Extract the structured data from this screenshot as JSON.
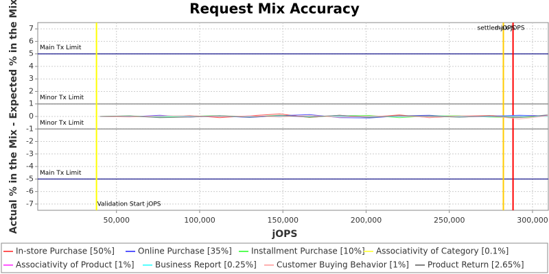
{
  "chart_data": {
    "type": "line",
    "title": "Request Mix Accuracy",
    "x_label": "jOPS",
    "y_label": "Actual % in the Mix - Expected % in the Mix",
    "xlim": [
      2700,
      309500
    ],
    "ylim": [
      -7.5,
      7.5
    ],
    "xticks": [
      {
        "value": 50000,
        "label": "50,000"
      },
      {
        "value": 100000,
        "label": "100,000"
      },
      {
        "value": 150000,
        "label": "150,000"
      },
      {
        "value": 200000,
        "label": "200,000"
      },
      {
        "value": 250000,
        "label": "250,000"
      },
      {
        "value": 300000,
        "label": "300,000"
      }
    ],
    "yticks": [
      -7,
      -6,
      -5,
      -4,
      -3,
      -2,
      -1,
      0,
      1,
      2,
      3,
      4,
      5,
      6,
      7
    ],
    "grid": true,
    "legend": "bottom",
    "hlines": [
      {
        "value": 5,
        "label": "Main Tx Limit",
        "color": "#000080"
      },
      {
        "value": 1,
        "label": "Minor Tx Limit",
        "color": "#808080"
      },
      {
        "value": -1,
        "label": "Minor Tx Limit",
        "color": "#808080"
      },
      {
        "value": -5,
        "label": "Main Tx Limit",
        "color": "#000080"
      }
    ],
    "vlines": [
      {
        "value": 38000,
        "label": "Validation Start jOPS",
        "color": "#ffff00",
        "label_at": "bottom"
      },
      {
        "value": 282500,
        "label": "settled-jOPS",
        "color": "#ffcc00",
        "label_at": "top"
      },
      {
        "value": 288300,
        "label": "max-jOPS",
        "color": "#ff0000",
        "label_at": "top"
      }
    ],
    "x": [
      40000,
      58000,
      76000,
      94000,
      112000,
      130000,
      148000,
      166000,
      184000,
      202000,
      220000,
      238000,
      256000,
      274000,
      292000,
      309000
    ],
    "series": [
      {
        "name": "In-store Purchase [50%]",
        "color": "#ff5555",
        "values": [
          0,
          0.02,
          -0.05,
          0.08,
          -0.1,
          0.05,
          0.2,
          -0.08,
          0.1,
          -0.05,
          0.12,
          -0.1,
          0.05,
          0.08,
          -0.06,
          0.1
        ]
      },
      {
        "name": "Online Purchase [35%]",
        "color": "#5555ff",
        "values": [
          0,
          -0.03,
          0.1,
          -0.05,
          0.04,
          -0.08,
          0.06,
          0.15,
          -0.1,
          -0.12,
          0.05,
          0.1,
          -0.05,
          0.02,
          0.1,
          0.05
        ]
      },
      {
        "name": "Installment Purchase [10%]",
        "color": "#55ff55",
        "values": [
          0,
          0.05,
          -0.08,
          0.02,
          0.06,
          -0.04,
          0.1,
          -0.06,
          0.05,
          0.08,
          -0.1,
          0.04,
          0.06,
          -0.05,
          -0.08,
          0.03
        ]
      },
      {
        "name": "Associativity of Category [0.1%]",
        "color": "#ffff55",
        "values": [
          0,
          0.01,
          0,
          -0.01,
          0,
          0.01,
          0,
          0,
          -0.01,
          0,
          0.01,
          0,
          0,
          0,
          0.01,
          0
        ]
      },
      {
        "name": "Associativity of Product [1%]",
        "color": "#ff55ff",
        "values": [
          0,
          -0.02,
          0.03,
          0,
          -0.02,
          0.02,
          0.01,
          -0.03,
          0.02,
          0,
          -0.01,
          0.02,
          0,
          -0.02,
          0.01,
          0
        ]
      },
      {
        "name": "Business Report [0.25%]",
        "color": "#55ffff",
        "values": [
          0,
          0.01,
          -0.01,
          0.02,
          0,
          -0.02,
          0.01,
          0,
          0.01,
          -0.01,
          0,
          0.02,
          -0.01,
          0,
          0.01,
          0
        ]
      },
      {
        "name": "Customer Buying Behavior [1%]",
        "color": "#ffafaf",
        "values": [
          0,
          -0.05,
          0.04,
          0.06,
          -0.03,
          0.05,
          -0.04,
          0.08,
          -0.06,
          0.03,
          0.05,
          -0.07,
          0.04,
          0.06,
          -0.2,
          0.05
        ]
      },
      {
        "name": "Product Return [2.65%]",
        "color": "#808080",
        "values": [
          0,
          0.04,
          -0.1,
          -0.05,
          0.06,
          -0.06,
          0.08,
          -0.04,
          0.1,
          -0.08,
          0.06,
          0.03,
          -0.06,
          0.04,
          -0.08,
          0.12
        ]
      }
    ]
  }
}
